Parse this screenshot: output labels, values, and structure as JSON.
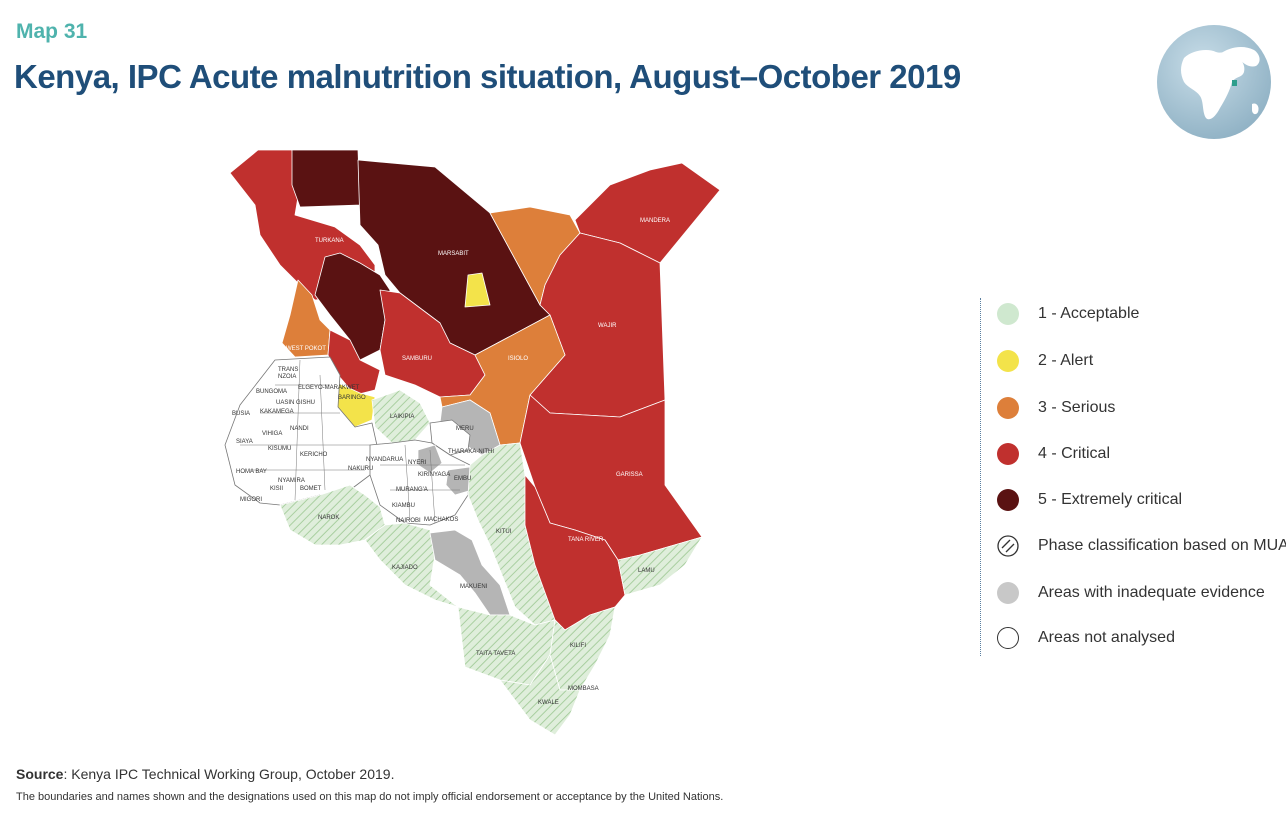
{
  "map_label": "Map 31",
  "title": "Kenya, IPC Acute malnutrition situation, August–October 2019",
  "colors": {
    "acceptable": "#cfe8cf",
    "alert": "#f3e34a",
    "serious": "#dd7f3a",
    "critical": "#c0302e",
    "extremely_critical": "#5a1212",
    "inadequate_evidence": "#b5b5b5",
    "not_analysed": "#ffffff",
    "title": "#1f4e79",
    "map_label": "#4fb3ad"
  },
  "legend": {
    "items": [
      {
        "label": "1 - Acceptable",
        "swatch": "acceptable"
      },
      {
        "label": "2 - Alert",
        "swatch": "alert"
      },
      {
        "label": "3 - Serious",
        "swatch": "serious"
      },
      {
        "label": "4 - Critical",
        "swatch": "critical"
      },
      {
        "label": "5 - Extremely critical",
        "swatch": "extremely_critical"
      },
      {
        "label": "Phase classification based on MUAC",
        "swatch": "hatched"
      },
      {
        "label": "Areas with inadequate evidence",
        "swatch": "inadequate_evidence"
      },
      {
        "label": "Areas not analysed",
        "swatch": "not_analysed"
      }
    ]
  },
  "counties": {
    "turkana": "TURKANA",
    "marsabit": "MARSABIT",
    "mandera": "MANDERA",
    "wajir": "WAJIR",
    "west_pokot": "WEST POKOT",
    "samburu": "SAMBURU",
    "isiolo": "ISIOLO",
    "trans_nzoia": "TRANS\nNZOIA",
    "bungoma": "BUNGOMA",
    "elgeyo_marakwet": "ELGEYO-MARAKWET",
    "uasin_gishu": "UASIN GISHU",
    "baringo": "BARINGO",
    "busia": "BUSIA",
    "kakamega": "KAKAMEGA",
    "laikipia": "LAIKIPIA",
    "meru": "MERU",
    "vihiga": "VIHIGA",
    "nandi": "NANDI",
    "siaya": "SIAYA",
    "kisumu": "KISUMU",
    "kericho": "KERICHO",
    "nyandarua": "NYANDARUA",
    "nyeri": "NYERI",
    "tharaka_nithi": "THARAKA-NITHI",
    "homa_bay": "HOMA BAY",
    "nakuru": "NAKURU",
    "kirinyaga": "KIRINYAGA",
    "embu": "EMBU",
    "nyamira": "NYAMIRA",
    "kisii": "KISII",
    "bomet": "BOMET",
    "murang_a": "MURANG'A",
    "migori": "MIGORI",
    "kiambu": "KIAMBU",
    "garissa": "GARISSA",
    "narok": "NAROK",
    "nairobi": "NAIROBI",
    "machakos": "MACHAKOS",
    "kitui": "KITUI",
    "kajiado": "KAJIADO",
    "tana_river": "TANA RIVER",
    "lamu": "LAMU",
    "makueni": "MAKUENI",
    "kilifi": "KILIFI",
    "taita_taveta": "TAITA TAVETA",
    "mombasa": "MOMBASA",
    "kwale": "KWALE"
  },
  "source_label": "Source",
  "source_text": ": Kenya IPC Technical Working Group, October 2019.",
  "disclaimer": "The boundaries and names shown and the designations used on this map do not imply official endorsement or acceptance by the United Nations."
}
